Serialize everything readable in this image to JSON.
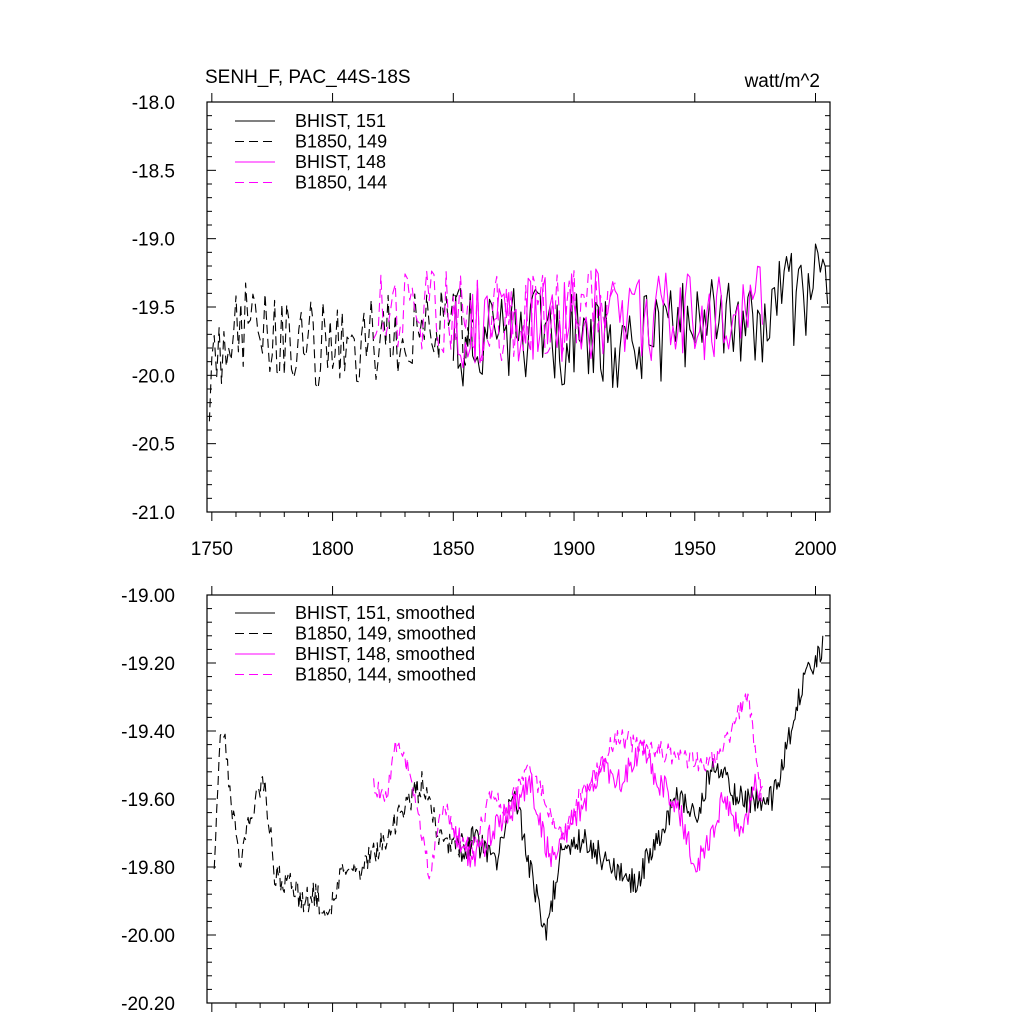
{
  "chart_data": [
    {
      "type": "line",
      "title": "SENH_F, PAC_44S-18S",
      "units": "watt/m^2",
      "xlim": [
        1748,
        2006
      ],
      "ylim": [
        -21.0,
        -18.0
      ],
      "x_ticks": [
        1750,
        1800,
        1850,
        1900,
        1950,
        2000
      ],
      "x_tick_labels": [
        "1750",
        "1800",
        "1850",
        "1900",
        "1950",
        "2000"
      ],
      "y_ticks": [
        -18.0,
        -18.5,
        -19.0,
        -19.5,
        -20.0,
        -20.5,
        -21.0
      ],
      "y_tick_labels": [
        "-18.0",
        "-18.5",
        "-19.0",
        "-19.5",
        "-20.0",
        "-20.5",
        "-21.0"
      ],
      "legend_position": "top-left",
      "series": [
        {
          "name": "BHIST, 151",
          "color": "#000000",
          "dash": "solid",
          "x_start": 1850,
          "x_end": 2005,
          "anchors": [
            [
              1850,
              -19.75
            ],
            [
              1875,
              -19.7
            ],
            [
              1900,
              -19.75
            ],
            [
              1925,
              -19.75
            ],
            [
              1950,
              -19.65
            ],
            [
              1975,
              -19.6
            ],
            [
              1990,
              -19.45
            ],
            [
              2005,
              -19.3
            ]
          ],
          "amplitude": 0.35,
          "seed": 151
        },
        {
          "name": "B1850, 149",
          "color": "#000000",
          "dash": "dashed",
          "x_start": 1749,
          "x_end": 1858,
          "anchors": [
            [
              1749,
              -20.2
            ],
            [
              1752,
              -19.8
            ],
            [
              1760,
              -19.6
            ],
            [
              1780,
              -19.75
            ],
            [
              1800,
              -19.8
            ],
            [
              1820,
              -19.75
            ],
            [
              1840,
              -19.6
            ],
            [
              1858,
              -19.65
            ]
          ],
          "amplitude": 0.33,
          "seed": 149
        },
        {
          "name": "BHIST, 148",
          "color": "#ff00ff",
          "dash": "solid",
          "x_start": 1850,
          "x_end": 1978,
          "anchors": [
            [
              1850,
              -19.6
            ],
            [
              1875,
              -19.65
            ],
            [
              1900,
              -19.55
            ],
            [
              1925,
              -19.55
            ],
            [
              1950,
              -19.6
            ],
            [
              1978,
              -19.5
            ]
          ],
          "amplitude": 0.35,
          "seed": 148
        },
        {
          "name": "B1850, 144",
          "color": "#ff00ff",
          "dash": "dashed",
          "x_start": 1817,
          "x_end": 1917,
          "anchors": [
            [
              1817,
              -19.6
            ],
            [
              1840,
              -19.5
            ],
            [
              1860,
              -19.6
            ],
            [
              1880,
              -19.55
            ],
            [
              1900,
              -19.55
            ],
            [
              1917,
              -19.45
            ]
          ],
          "amplitude": 0.32,
          "seed": 144
        }
      ]
    },
    {
      "type": "line",
      "title": "",
      "xlim": [
        1748,
        2006
      ],
      "ylim": [
        -20.2,
        -19.0
      ],
      "x_ticks": [
        1750,
        1800,
        1850,
        1900,
        1950,
        2000
      ],
      "y_ticks": [
        -19.0,
        -19.2,
        -19.4,
        -19.6,
        -19.8,
        -20.0,
        -20.2
      ],
      "y_tick_labels": [
        "-19.00",
        "-19.20",
        "-19.40",
        "-19.60",
        "-19.80",
        "-20.00",
        "-20.20"
      ],
      "legend_position": "top-left",
      "series": [
        {
          "name": "BHIST, 151, smoothed",
          "color": "#000000",
          "dash": "solid",
          "x_start": 1852,
          "x_end": 2003,
          "anchors": [
            [
              1852,
              -19.78
            ],
            [
              1858,
              -19.72
            ],
            [
              1868,
              -19.78
            ],
            [
              1875,
              -19.55
            ],
            [
              1880,
              -19.75
            ],
            [
              1885,
              -19.9
            ],
            [
              1888,
              -20.0
            ],
            [
              1895,
              -19.75
            ],
            [
              1905,
              -19.72
            ],
            [
              1915,
              -19.8
            ],
            [
              1925,
              -19.85
            ],
            [
              1935,
              -19.72
            ],
            [
              1942,
              -19.6
            ],
            [
              1950,
              -19.65
            ],
            [
              1958,
              -19.5
            ],
            [
              1968,
              -19.6
            ],
            [
              1975,
              -19.6
            ],
            [
              1982,
              -19.6
            ],
            [
              1988,
              -19.45
            ],
            [
              1995,
              -19.25
            ],
            [
              2003,
              -19.15
            ]
          ],
          "amplitude": 0.04,
          "seed": 1151
        },
        {
          "name": "B1850, 149, smoothed",
          "color": "#000000",
          "dash": "dashed",
          "x_start": 1751,
          "x_end": 1858,
          "anchors": [
            [
              1751,
              -19.82
            ],
            [
              1753,
              -19.45
            ],
            [
              1755,
              -19.38
            ],
            [
              1758,
              -19.6
            ],
            [
              1762,
              -19.8
            ],
            [
              1767,
              -19.62
            ],
            [
              1772,
              -19.55
            ],
            [
              1776,
              -19.82
            ],
            [
              1782,
              -19.85
            ],
            [
              1788,
              -19.9
            ],
            [
              1793,
              -19.88
            ],
            [
              1798,
              -19.95
            ],
            [
              1803,
              -19.82
            ],
            [
              1808,
              -19.82
            ],
            [
              1815,
              -19.78
            ],
            [
              1822,
              -19.72
            ],
            [
              1830,
              -19.62
            ],
            [
              1838,
              -19.55
            ],
            [
              1844,
              -19.7
            ],
            [
              1850,
              -19.75
            ],
            [
              1858,
              -19.72
            ]
          ],
          "amplitude": 0.04,
          "seed": 1149
        },
        {
          "name": "BHIST, 148, smoothed",
          "color": "#ff00ff",
          "dash": "solid",
          "x_start": 1850,
          "x_end": 1978,
          "anchors": [
            [
              1850,
              -19.7
            ],
            [
              1858,
              -19.78
            ],
            [
              1866,
              -19.7
            ],
            [
              1875,
              -19.62
            ],
            [
              1882,
              -19.55
            ],
            [
              1890,
              -19.78
            ],
            [
              1898,
              -19.68
            ],
            [
              1905,
              -19.6
            ],
            [
              1912,
              -19.5
            ],
            [
              1920,
              -19.55
            ],
            [
              1928,
              -19.45
            ],
            [
              1935,
              -19.55
            ],
            [
              1943,
              -19.62
            ],
            [
              1950,
              -19.8
            ],
            [
              1956,
              -19.72
            ],
            [
              1962,
              -19.6
            ],
            [
              1970,
              -19.7
            ],
            [
              1975,
              -19.55
            ],
            [
              1978,
              -19.58
            ]
          ],
          "amplitude": 0.04,
          "seed": 1148
        },
        {
          "name": "B1850, 144, smoothed",
          "color": "#ff00ff",
          "dash": "dashed",
          "x_start": 1817,
          "x_end": 1978,
          "anchors": [
            [
              1817,
              -19.55
            ],
            [
              1822,
              -19.6
            ],
            [
              1827,
              -19.42
            ],
            [
              1833,
              -19.55
            ],
            [
              1840,
              -19.82
            ],
            [
              1846,
              -19.62
            ],
            [
              1852,
              -19.72
            ],
            [
              1858,
              -19.75
            ],
            [
              1866,
              -19.58
            ],
            [
              1872,
              -19.65
            ],
            [
              1880,
              -19.5
            ],
            [
              1888,
              -19.6
            ],
            [
              1895,
              -19.72
            ],
            [
              1902,
              -19.6
            ],
            [
              1907,
              -19.55
            ],
            [
              1912,
              -19.48
            ],
            [
              1917,
              -19.42
            ],
            [
              1955,
              -19.5
            ],
            [
              1962,
              -19.45
            ],
            [
              1968,
              -19.35
            ],
            [
              1972,
              -19.28
            ],
            [
              1975,
              -19.45
            ],
            [
              1978,
              -19.6
            ]
          ],
          "amplitude": 0.03,
          "seed": 1144
        }
      ]
    }
  ]
}
